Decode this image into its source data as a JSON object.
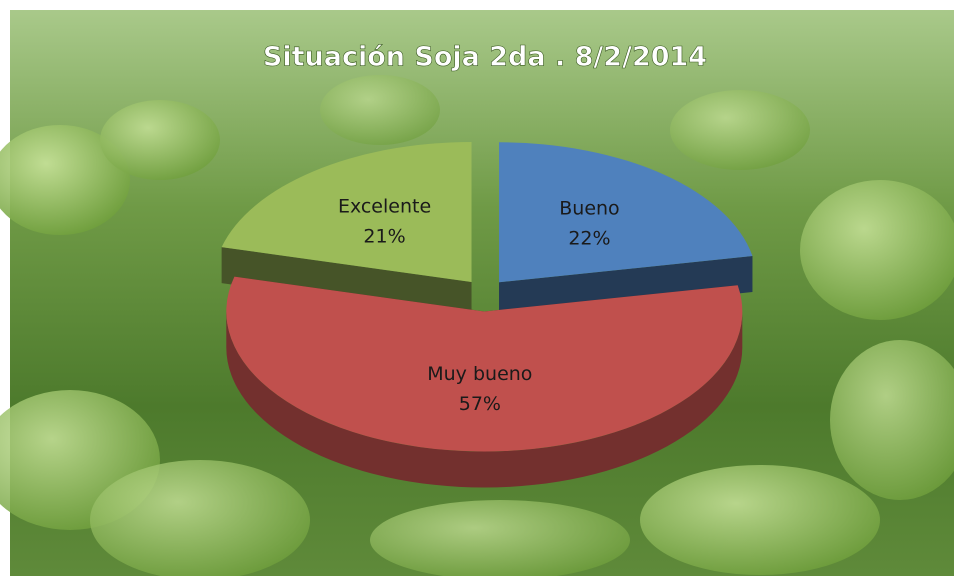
{
  "chart_data": {
    "type": "pie",
    "title": "Situación Soja 2da . 8/2/2014",
    "categories": [
      "Bueno",
      "Muy bueno",
      "Excelente"
    ],
    "values": [
      22,
      57,
      21
    ],
    "value_labels": [
      "22%",
      "57%",
      "21%"
    ],
    "colors": [
      "#4f81bd",
      "#c0504d",
      "#9bbb59"
    ]
  }
}
